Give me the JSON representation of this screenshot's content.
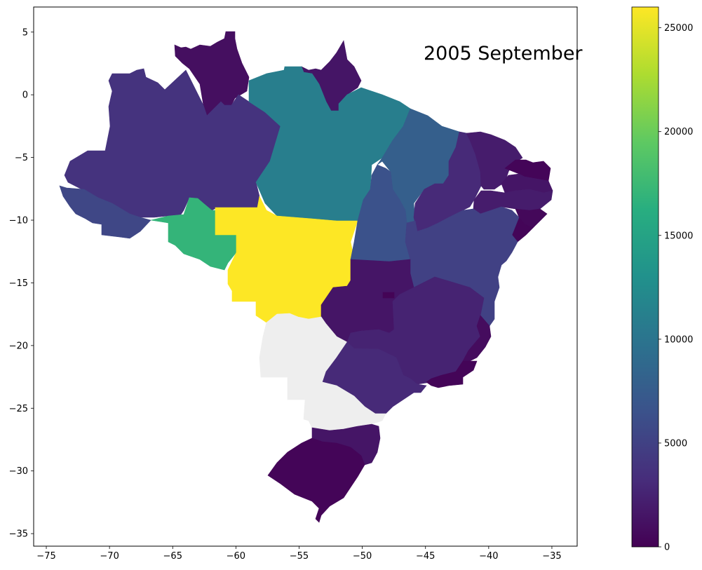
{
  "title": "2005 September",
  "colormap": "viridis",
  "missing_color": "#eeeeee",
  "colorbar": {
    "min": 0,
    "max": 26000,
    "ticks": [
      0,
      5000,
      10000,
      15000,
      20000,
      25000
    ],
    "tick_labels": [
      "0",
      "5000",
      "10000",
      "15000",
      "20000",
      "25000"
    ]
  },
  "axes": {
    "xlim": [
      -76,
      -33
    ],
    "ylim": [
      -36,
      7
    ],
    "xticks": [
      -75,
      -70,
      -65,
      -60,
      -55,
      -50,
      -45,
      -40,
      -35
    ],
    "xtick_labels": [
      "−75",
      "−70",
      "−65",
      "−60",
      "−55",
      "−50",
      "−45",
      "−40",
      "−35"
    ],
    "yticks": [
      5,
      0,
      -5,
      -10,
      -15,
      -20,
      -25,
      -30,
      -35
    ],
    "ytick_labels": [
      "5",
      "0",
      "−5",
      "−10",
      "−15",
      "−20",
      "−25",
      "−30",
      "−35"
    ]
  },
  "regions": [
    {
      "name": "roraima",
      "value": 1000
    },
    {
      "name": "amapa",
      "value": 1500
    },
    {
      "name": "amazonas",
      "value": 3800
    },
    {
      "name": "para",
      "value": 11000
    },
    {
      "name": "acre",
      "value": 5500
    },
    {
      "name": "rondonia",
      "value": 17000
    },
    {
      "name": "mato-grosso",
      "value": 26000
    },
    {
      "name": "maranhao",
      "value": 7800
    },
    {
      "name": "tocantins",
      "value": 6500
    },
    {
      "name": "piaui",
      "value": 3000
    },
    {
      "name": "ceara",
      "value": 2000
    },
    {
      "name": "rio-grande-do-norte",
      "value": 300
    },
    {
      "name": "paraiba",
      "value": 1500
    },
    {
      "name": "pernambuco",
      "value": 2000
    },
    {
      "name": "alagoas",
      "value": 500
    },
    {
      "name": "sergipe",
      "value": 300
    },
    {
      "name": "bahia",
      "value": 5000
    },
    {
      "name": "goias",
      "value": 1500
    },
    {
      "name": "distrito-federal",
      "value": 200
    },
    {
      "name": "mato-grosso-do-sul",
      "value": null
    },
    {
      "name": "minas-gerais",
      "value": 2500
    },
    {
      "name": "espirito-santo",
      "value": 800
    },
    {
      "name": "rio-de-janeiro",
      "value": 300
    },
    {
      "name": "sao-paulo",
      "value": 3000
    },
    {
      "name": "parana",
      "value": null
    },
    {
      "name": "santa-catarina",
      "value": 1500
    },
    {
      "name": "rio-grande-do-sul",
      "value": 300
    }
  ]
}
